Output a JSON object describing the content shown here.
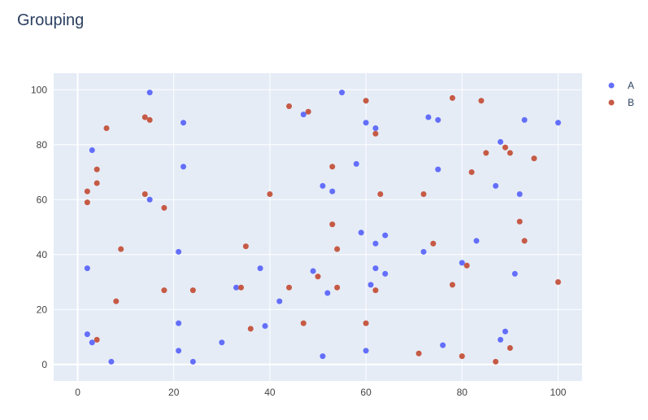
{
  "chart_data": {
    "type": "scatter",
    "title": "Grouping",
    "xlabel": "",
    "ylabel": "",
    "xlim": [
      -5,
      105
    ],
    "ylim": [
      -6,
      106
    ],
    "x_ticks": [
      0,
      20,
      40,
      60,
      80,
      100
    ],
    "y_ticks": [
      0,
      20,
      40,
      60,
      80,
      100
    ],
    "grid": true,
    "legend_position": "top-right",
    "series": [
      {
        "name": "A",
        "color": "#636efa",
        "points": [
          [
            2,
            35
          ],
          [
            2,
            11
          ],
          [
            3,
            8
          ],
          [
            3,
            78
          ],
          [
            7,
            1
          ],
          [
            15,
            99
          ],
          [
            15,
            60
          ],
          [
            21,
            41
          ],
          [
            21,
            15
          ],
          [
            21,
            5
          ],
          [
            22,
            88
          ],
          [
            22,
            72
          ],
          [
            24,
            1
          ],
          [
            30,
            8
          ],
          [
            33,
            28
          ],
          [
            38,
            35
          ],
          [
            39,
            14
          ],
          [
            42,
            23
          ],
          [
            47,
            91
          ],
          [
            49,
            34
          ],
          [
            51,
            65
          ],
          [
            51,
            3
          ],
          [
            52,
            26
          ],
          [
            53,
            63
          ],
          [
            55,
            99
          ],
          [
            58,
            73
          ],
          [
            59,
            48
          ],
          [
            60,
            88
          ],
          [
            60,
            5
          ],
          [
            61,
            29
          ],
          [
            62,
            86
          ],
          [
            62,
            44
          ],
          [
            62,
            35
          ],
          [
            64,
            47
          ],
          [
            64,
            33
          ],
          [
            72,
            41
          ],
          [
            73,
            90
          ],
          [
            75,
            89
          ],
          [
            75,
            71
          ],
          [
            76,
            7
          ],
          [
            80,
            37
          ],
          [
            83,
            45
          ],
          [
            87,
            65
          ],
          [
            88,
            81
          ],
          [
            88,
            9
          ],
          [
            89,
            12
          ],
          [
            91,
            33
          ],
          [
            92,
            62
          ],
          [
            93,
            89
          ],
          [
            100,
            88
          ]
        ]
      },
      {
        "name": "B",
        "color": "#c65a45",
        "points": [
          [
            2,
            63
          ],
          [
            2,
            59
          ],
          [
            4,
            71
          ],
          [
            4,
            66
          ],
          [
            4,
            9
          ],
          [
            6,
            86
          ],
          [
            8,
            23
          ],
          [
            9,
            42
          ],
          [
            14,
            90
          ],
          [
            14,
            62
          ],
          [
            15,
            89
          ],
          [
            18,
            57
          ],
          [
            18,
            27
          ],
          [
            24,
            27
          ],
          [
            34,
            28
          ],
          [
            35,
            43
          ],
          [
            36,
            13
          ],
          [
            40,
            62
          ],
          [
            44,
            94
          ],
          [
            44,
            28
          ],
          [
            47,
            15
          ],
          [
            48,
            92
          ],
          [
            50,
            32
          ],
          [
            53,
            72
          ],
          [
            53,
            51
          ],
          [
            54,
            42
          ],
          [
            54,
            28
          ],
          [
            60,
            96
          ],
          [
            60,
            15
          ],
          [
            62,
            84
          ],
          [
            62,
            27
          ],
          [
            63,
            62
          ],
          [
            71,
            4
          ],
          [
            72,
            62
          ],
          [
            74,
            44
          ],
          [
            78,
            97
          ],
          [
            78,
            29
          ],
          [
            80,
            3
          ],
          [
            81,
            36
          ],
          [
            82,
            70
          ],
          [
            84,
            96
          ],
          [
            85,
            77
          ],
          [
            87,
            1
          ],
          [
            89,
            79
          ],
          [
            90,
            77
          ],
          [
            90,
            6
          ],
          [
            92,
            52
          ],
          [
            93,
            45
          ],
          [
            95,
            75
          ],
          [
            100,
            30
          ]
        ]
      }
    ]
  }
}
